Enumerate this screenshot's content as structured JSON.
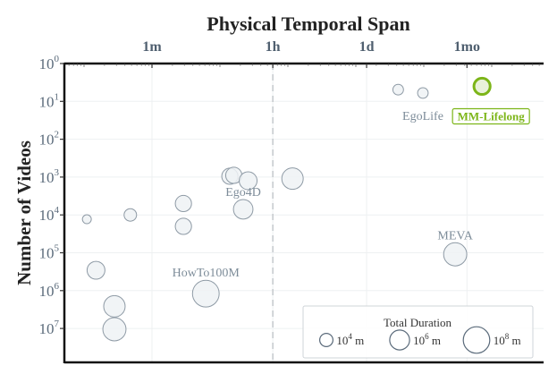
{
  "chart_data": {
    "type": "scatter",
    "title": "Physical Temporal Span",
    "xlabel": "Physical Temporal Span",
    "ylabel": "Number of Videos",
    "x_scale": "log",
    "y_scale": "log",
    "y_inverted": true,
    "x_unit": "minutes",
    "xlim": [
      0.05,
      580000
    ],
    "ylim": [
      1,
      80000000
    ],
    "x_ticks": [
      {
        "value": 1,
        "label": "1m"
      },
      {
        "value": 60,
        "label": "1h"
      },
      {
        "value": 1440,
        "label": "1d"
      },
      {
        "value": 43200,
        "label": "1mo"
      }
    ],
    "y_ticks": [
      {
        "value": 1,
        "base": "10",
        "exp": "0"
      },
      {
        "value": 10,
        "base": "10",
        "exp": "1"
      },
      {
        "value": 100,
        "base": "10",
        "exp": "2"
      },
      {
        "value": 1000,
        "base": "10",
        "exp": "3"
      },
      {
        "value": 10000,
        "base": "10",
        "exp": "4"
      },
      {
        "value": 100000,
        "base": "10",
        "exp": "5"
      },
      {
        "value": 1000000,
        "base": "10",
        "exp": "6"
      },
      {
        "value": 10000000,
        "base": "10",
        "exp": "7"
      }
    ],
    "reference_line": {
      "x": 60,
      "style": "dashed"
    },
    "grid": true,
    "size_legend": {
      "title": "Total Duration",
      "placement": "bottom-right",
      "entries": [
        {
          "value": 10000,
          "base": "10",
          "exp": "4",
          "unit": " m"
        },
        {
          "value": 1000000,
          "base": "10",
          "exp": "6",
          "unit": " m"
        },
        {
          "value": 100000000,
          "base": "10",
          "exp": "8",
          "unit": " m"
        }
      ]
    },
    "points": [
      {
        "x": 0.11,
        "y": 13000,
        "size": 500,
        "label": ""
      },
      {
        "x": 0.48,
        "y": 10000,
        "size": 6000,
        "label": ""
      },
      {
        "x": 2.9,
        "y": 5000,
        "size": 80000,
        "label": ""
      },
      {
        "x": 2.9,
        "y": 20000,
        "size": 80000,
        "label": ""
      },
      {
        "x": 0.15,
        "y": 290000,
        "size": 250000,
        "label": ""
      },
      {
        "x": 0.28,
        "y": 2600000,
        "size": 3000000,
        "label": ""
      },
      {
        "x": 0.28,
        "y": 10500000,
        "size": 10000000,
        "label": ""
      },
      {
        "x": 6.2,
        "y": 1200000,
        "size": 120000000,
        "label": "HowTo100M"
      },
      {
        "x": 14,
        "y": 950,
        "size": 80000,
        "label": ""
      },
      {
        "x": 16,
        "y": 900,
        "size": 80000,
        "label": ""
      },
      {
        "x": 26,
        "y": 1250,
        "size": 250000,
        "label": ""
      },
      {
        "x": 22,
        "y": 7100,
        "size": 800000,
        "label": "Ego4D"
      },
      {
        "x": 117,
        "y": 1100,
        "size": 3000000,
        "label": ""
      },
      {
        "x": 4200,
        "y": 4.9,
        "size": 1600,
        "label": ""
      },
      {
        "x": 9700,
        "y": 6,
        "size": 1600,
        "label": "EgoLife"
      },
      {
        "x": 72000,
        "y": 4,
        "size": 80000,
        "label": "MM-Lifelong",
        "highlight": true
      },
      {
        "x": 29000,
        "y": 110000,
        "size": 10000000,
        "label": "MEVA"
      }
    ],
    "colors": {
      "bubble_fill": "#eef2f5",
      "bubble_stroke": "#8e9aa5",
      "highlight_fill": "#e4efd2",
      "highlight_stroke": "#7cb518",
      "label": "#7d8c99"
    }
  }
}
